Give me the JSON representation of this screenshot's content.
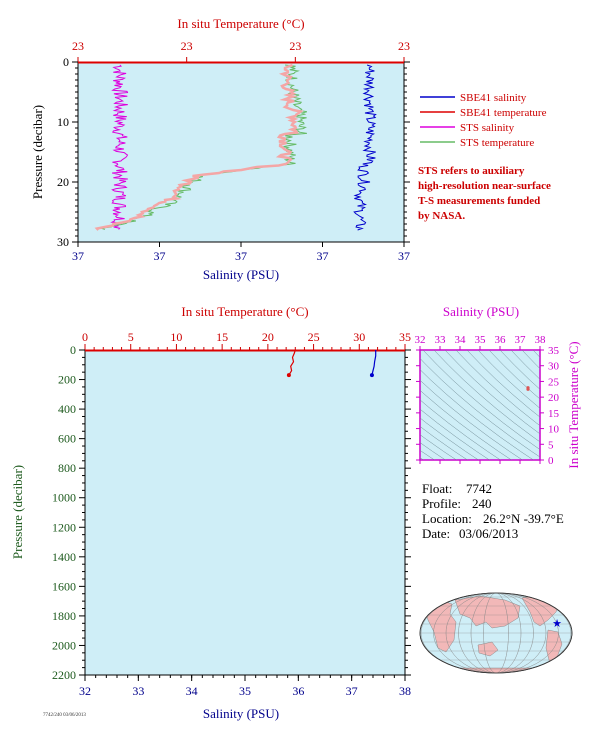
{
  "chart_data": [
    {
      "type": "line",
      "panel": "top",
      "title_top": "In situ Temperature (°C)",
      "top_ticks": [
        "23",
        "23",
        "23",
        "23"
      ],
      "xlabel": "Salinity (PSU)",
      "bottom_ticks": [
        "37",
        "37",
        "37",
        "37",
        "37"
      ],
      "ylabel": "Pressure (decibar)",
      "ylim": [
        30,
        0
      ],
      "y_ticks": [
        0,
        10,
        20,
        30
      ],
      "legend": [
        {
          "name": "SBE41 salinity",
          "color": "#0000cc"
        },
        {
          "name": "SBE41 temperature",
          "color": "#dd0000"
        },
        {
          "name": "STS salinity",
          "color": "#dd00dd"
        },
        {
          "name": "STS temperature",
          "color": "#66bb66"
        }
      ],
      "note": [
        "STS refers to auxiliary",
        "high-resolution near-surface",
        "T-S measurements funded",
        "by NASA."
      ]
    },
    {
      "type": "line",
      "panel": "bottom",
      "title_top": "In situ Temperature (°C)",
      "xlim_temp": [
        0,
        35
      ],
      "top_ticks": [
        0,
        5,
        10,
        15,
        20,
        25,
        30,
        35
      ],
      "xlabel": "Salinity (PSU)",
      "xlim_sal": [
        32,
        38
      ],
      "bottom_ticks": [
        32,
        33,
        34,
        35,
        36,
        37,
        38
      ],
      "ylabel": "Pressure (decibar)",
      "ylim": [
        2200,
        0
      ],
      "y_ticks": [
        0,
        200,
        400,
        600,
        800,
        1000,
        1200,
        1400,
        1600,
        1800,
        2000,
        2200
      ],
      "series": [
        {
          "kind": "temperature",
          "color": "#dd0000",
          "points": [
            [
              23.0,
              0
            ],
            [
              22.9,
              20
            ],
            [
              22.7,
              50
            ],
            [
              22.8,
              80
            ],
            [
              22.5,
              110
            ],
            [
              22.6,
              140
            ],
            [
              22.3,
              170
            ]
          ]
        },
        {
          "kind": "salinity",
          "color": "#0000cc",
          "points": [
            [
              37.45,
              0
            ],
            [
              37.45,
              40
            ],
            [
              37.43,
              80
            ],
            [
              37.42,
              110
            ],
            [
              37.4,
              140
            ],
            [
              37.38,
              170
            ]
          ]
        }
      ]
    },
    {
      "type": "scatter",
      "panel": "ts-inset",
      "xlabel": "Salinity (PSU)",
      "xlim": [
        32,
        38
      ],
      "x_ticks": [
        32,
        33,
        34,
        35,
        36,
        37,
        38
      ],
      "ylabel": "In situ Temperature (°C)",
      "ylim": [
        0,
        35
      ],
      "y_ticks": [
        0,
        5,
        10,
        15,
        20,
        25,
        30,
        35
      ],
      "points": [
        [
          37.4,
          23.0
        ],
        [
          37.4,
          22.5
        ]
      ]
    }
  ],
  "info": {
    "float_label": "Float:",
    "float_value": "7742",
    "profile_label": "Profile:",
    "profile_value": "240",
    "location_label": "Location:",
    "location_value": "26.2°N  -39.7°E",
    "date_label": "Date:",
    "date_value": "03/06/2013"
  },
  "map": {
    "marker": "star",
    "marker_color": "#0000cc",
    "land_color": "#f2b8b8",
    "ocean_color": "#cfeef7"
  },
  "footer": "7742/240 03/06/2013",
  "colors": {
    "plot_bg": "#cfeef7",
    "red": "#cc0000",
    "blue": "#00008b",
    "green": "#1d5a1d",
    "magenta": "#cc00cc"
  }
}
